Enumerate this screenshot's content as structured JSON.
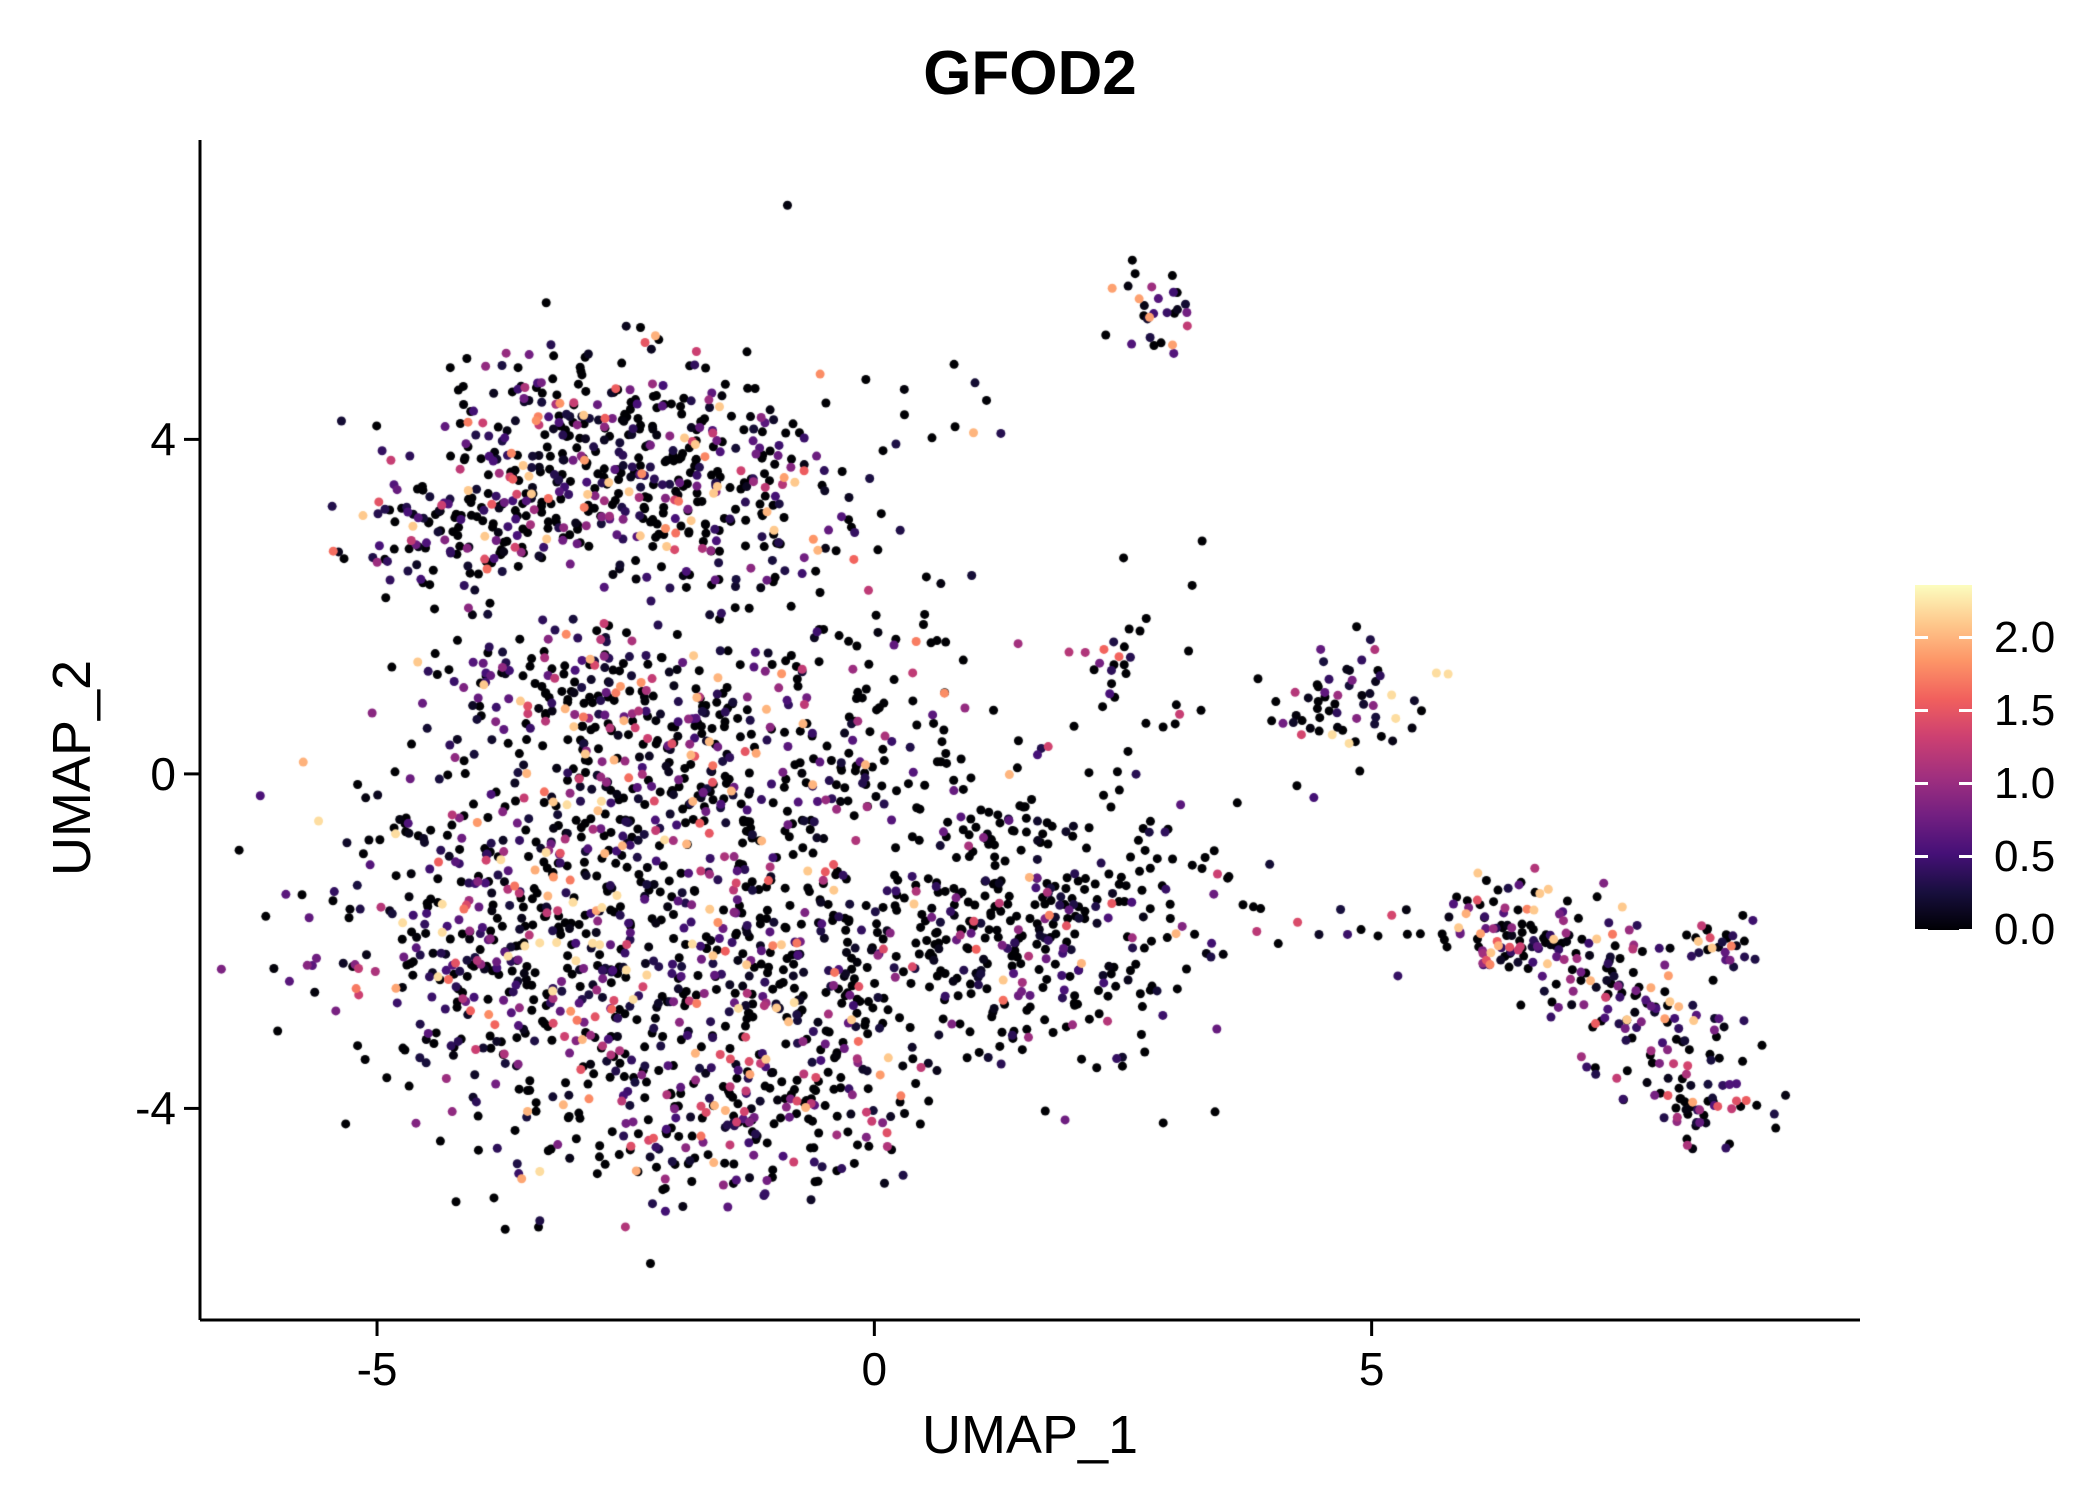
{
  "chart_data": {
    "type": "scatter",
    "title": "GFOD2",
    "xlabel": "UMAP_1",
    "ylabel": "UMAP_2",
    "grid": false,
    "legend_position": "right",
    "xlim": [
      -6.78,
      9.91
    ],
    "ylim": [
      -6.53,
      7.58
    ],
    "x_ticks": [
      -5,
      0,
      5
    ],
    "x_tick_labels": [
      "-5",
      "0",
      "5"
    ],
    "y_ticks": [
      -4,
      0,
      4
    ],
    "y_tick_labels": [
      "-4",
      "0",
      "4"
    ],
    "point_radius": 4.5,
    "seed": 42,
    "colorbar": {
      "title": "",
      "vmin": 0.0,
      "vmax": 2.36,
      "ticks": [
        0.0,
        0.5,
        1.0,
        1.5,
        2.0
      ],
      "tick_labels": [
        "0.0",
        "0.5",
        "1.0",
        "1.5",
        "2.0"
      ],
      "colormap": "magma",
      "stops": [
        {
          "t": 0.0,
          "color": "#000004"
        },
        {
          "t": 0.11,
          "color": "#180F3E"
        },
        {
          "t": 0.22,
          "color": "#451077"
        },
        {
          "t": 0.33,
          "color": "#721F81"
        },
        {
          "t": 0.44,
          "color": "#9F2F7F"
        },
        {
          "t": 0.56,
          "color": "#CD4071"
        },
        {
          "t": 0.67,
          "color": "#F1605D"
        },
        {
          "t": 0.78,
          "color": "#FD9567"
        },
        {
          "t": 0.89,
          "color": "#FEC98D"
        },
        {
          "t": 1.0,
          "color": "#FCFDBF"
        }
      ]
    },
    "clusters": [
      {
        "name": "upper-left-main",
        "cx": -2.7,
        "cy": 3.8,
        "sx": 1.0,
        "sy": 0.7,
        "n": 420,
        "p0": 0.45,
        "mean": 0.8,
        "vmax": 2.1
      },
      {
        "name": "upper-left-west",
        "cx": -4.2,
        "cy": 2.9,
        "sx": 0.55,
        "sy": 0.45,
        "n": 110,
        "p0": 0.45,
        "mean": 0.8,
        "vmax": 2.1
      },
      {
        "name": "upper-left-east",
        "cx": -1.4,
        "cy": 2.9,
        "sx": 0.6,
        "sy": 0.5,
        "n": 90,
        "p0": 0.5,
        "mean": 0.8,
        "vmax": 2.0
      },
      {
        "name": "top-trail",
        "cx": 0.55,
        "cy": 4.35,
        "sx": 0.35,
        "sy": 0.6,
        "n": 12,
        "p0": 0.5,
        "mean": 0.9,
        "vmax": 2.0
      },
      {
        "name": "top-cluster",
        "cx": 2.85,
        "cy": 5.55,
        "sx": 0.25,
        "sy": 0.3,
        "n": 28,
        "p0": 0.25,
        "mean": 0.9,
        "vmax": 1.9
      },
      {
        "name": "upper-mid-sparse",
        "cx": 0.0,
        "cy": 2.2,
        "sx": 0.5,
        "sy": 0.6,
        "n": 20,
        "p0": 0.6,
        "mean": 0.7,
        "vmax": 1.6
      },
      {
        "name": "ne-of-blob-sparse",
        "cx": 2.8,
        "cy": 2.3,
        "sx": 0.3,
        "sy": 0.3,
        "n": 4,
        "p0": 0.7,
        "mean": 0.6,
        "vmax": 1.2
      },
      {
        "name": "main-west",
        "cx": -3.3,
        "cy": -2.0,
        "sx": 1.1,
        "sy": 1.2,
        "n": 620,
        "p0": 0.38,
        "mean": 0.8,
        "vmax": 2.2
      },
      {
        "name": "main-center-top",
        "cx": -1.6,
        "cy": -0.3,
        "sx": 1.0,
        "sy": 0.8,
        "n": 280,
        "p0": 0.45,
        "mean": 0.8,
        "vmax": 2.0
      },
      {
        "name": "main-center-bottom",
        "cx": -0.7,
        "cy": -2.7,
        "sx": 0.9,
        "sy": 0.9,
        "n": 260,
        "p0": 0.5,
        "mean": 0.8,
        "vmax": 2.1
      },
      {
        "name": "main-east-lobe",
        "cx": 1.5,
        "cy": -1.8,
        "sx": 0.95,
        "sy": 0.9,
        "n": 380,
        "p0": 0.62,
        "mean": 0.6,
        "vmax": 2.0
      },
      {
        "name": "main-south",
        "cx": -1.6,
        "cy": -4.2,
        "sx": 0.9,
        "sy": 0.5,
        "n": 160,
        "p0": 0.45,
        "mean": 0.8,
        "vmax": 2.0
      },
      {
        "name": "north-band",
        "cx": -2.8,
        "cy": 0.9,
        "sx": 1.0,
        "sy": 0.55,
        "n": 200,
        "p0": 0.42,
        "mean": 0.8,
        "vmax": 2.1
      },
      {
        "name": "mid-sparse",
        "cx": 0.2,
        "cy": 0.5,
        "sx": 0.8,
        "sy": 0.8,
        "n": 60,
        "p0": 0.72,
        "mean": 0.6,
        "vmax": 1.8
      },
      {
        "name": "small-mid-cluster",
        "cx": 2.35,
        "cy": 1.3,
        "sx": 0.2,
        "sy": 0.25,
        "n": 18,
        "p0": 0.65,
        "mean": 0.7,
        "vmax": 1.6
      },
      {
        "name": "right-mid-cluster",
        "cx": 4.65,
        "cy": 0.85,
        "sx": 0.42,
        "sy": 0.32,
        "n": 60,
        "p0": 0.35,
        "mean": 0.9,
        "vmax": 2.2
      },
      {
        "name": "mid-bridge-sparse",
        "cx": 3.2,
        "cy": 0.1,
        "sx": 0.55,
        "sy": 0.5,
        "n": 14,
        "p0": 0.75,
        "mean": 0.6,
        "vmax": 1.5
      },
      {
        "name": "bridge-trail",
        "cx": 4.6,
        "cy": -1.85,
        "sx": 0.6,
        "sy": 0.1,
        "n": 10,
        "p0": 0.45,
        "mean": 1.2,
        "vmax": 2.3
      },
      {
        "name": "right-arm-1",
        "cx": 6.3,
        "cy": -1.85,
        "sx": 0.45,
        "sy": 0.3,
        "n": 85,
        "p0": 0.35,
        "mean": 0.9,
        "vmax": 2.1
      },
      {
        "name": "right-arm-2",
        "cx": 7.2,
        "cy": -2.3,
        "sx": 0.45,
        "sy": 0.35,
        "n": 75,
        "p0": 0.35,
        "mean": 0.9,
        "vmax": 2.1
      },
      {
        "name": "right-arm-3",
        "cx": 7.9,
        "cy": -3.1,
        "sx": 0.4,
        "sy": 0.45,
        "n": 70,
        "p0": 0.35,
        "mean": 0.9,
        "vmax": 2.1
      },
      {
        "name": "right-arm-tip",
        "cx": 8.4,
        "cy": -3.9,
        "sx": 0.3,
        "sy": 0.25,
        "n": 45,
        "p0": 0.35,
        "mean": 0.9,
        "vmax": 2.1
      },
      {
        "name": "right-arm-fork",
        "cx": 8.5,
        "cy": -2.05,
        "sx": 0.25,
        "sy": 0.18,
        "n": 25,
        "p0": 0.4,
        "mean": 0.9,
        "vmax": 2.1
      }
    ]
  }
}
